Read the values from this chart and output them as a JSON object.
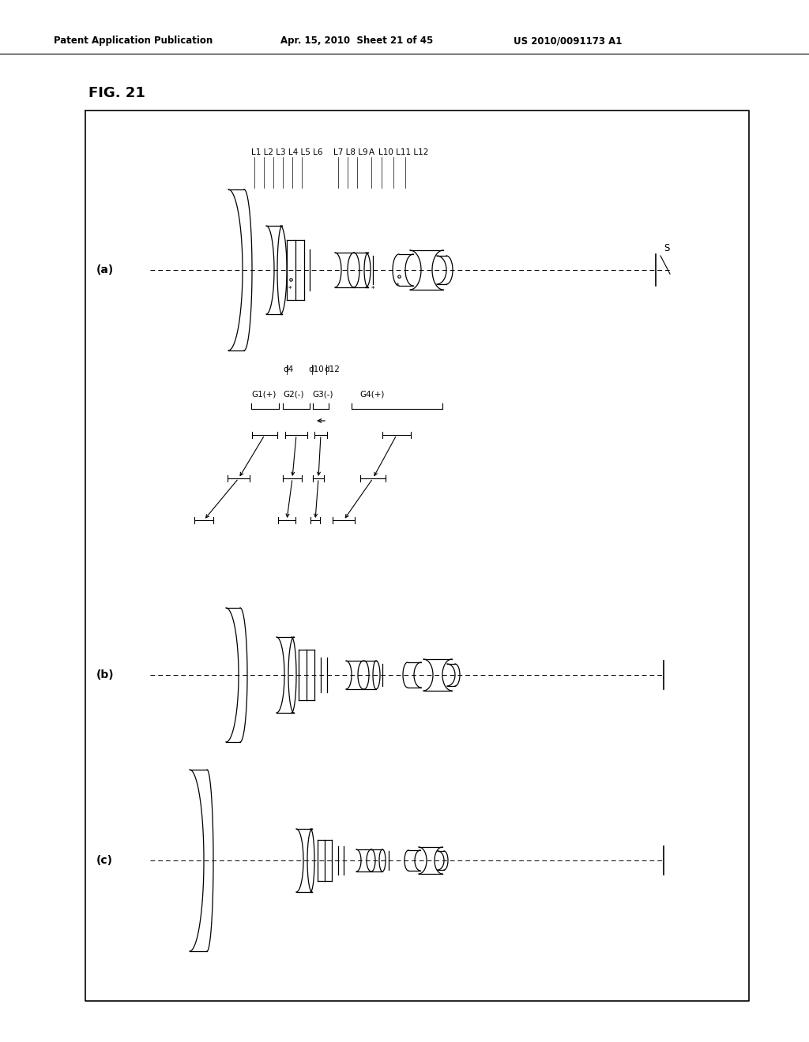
{
  "header_left": "Patent Application Publication",
  "header_center": "Apr. 15, 2010  Sheet 21 of 45",
  "header_right": "US 2010/0091173 A1",
  "fig_label": "FIG. 21",
  "label_a": "(a)",
  "label_b": "(b)",
  "label_c": "(c)",
  "S_label": "S",
  "bg_color": "#ffffff"
}
